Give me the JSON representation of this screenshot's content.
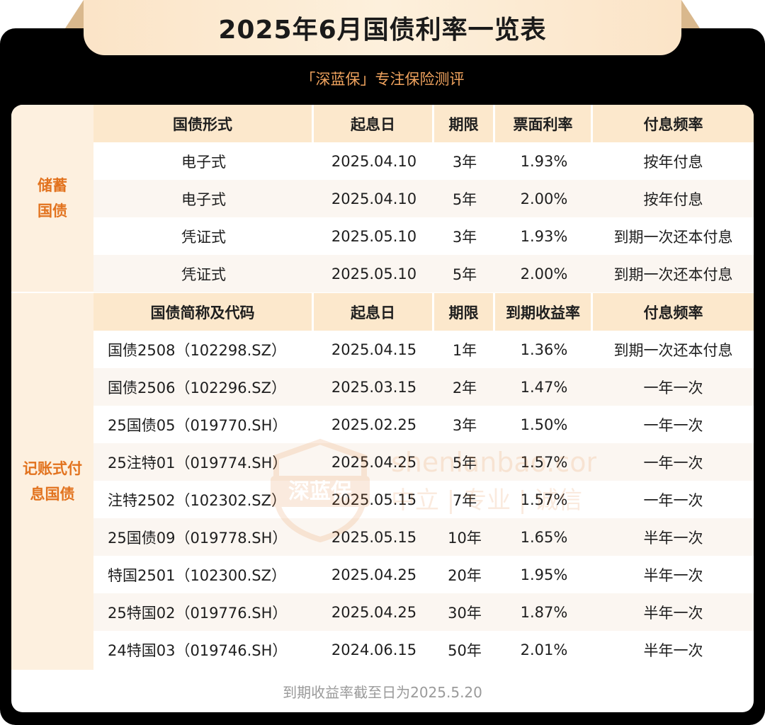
{
  "title": "2025年6月国债利率一览表",
  "subtitle": "「深蓝保」专注保险测评",
  "savings": {
    "category": [
      "储蓄",
      "国债"
    ],
    "headers": [
      "国债形式",
      "起息日",
      "期限",
      "票面利率",
      "付息频率"
    ],
    "rows": [
      [
        "电子式",
        "2025.04.10",
        "3年",
        "1.93%",
        "按年付息"
      ],
      [
        "电子式",
        "2025.04.10",
        "5年",
        "2.00%",
        "按年付息"
      ],
      [
        "凭证式",
        "2025.05.10",
        "3年",
        "1.93%",
        "到期一次还本付息"
      ],
      [
        "凭证式",
        "2025.05.10",
        "5年",
        "2.00%",
        "到期一次还本付息"
      ]
    ]
  },
  "bookkeeping": {
    "category": [
      "记账式付",
      "息国债"
    ],
    "headers": [
      "国债简称及代码",
      "起息日",
      "期限",
      "到期收益率",
      "付息频率"
    ],
    "rows": [
      [
        "国债2508（102298.SZ）",
        "2025.04.15",
        "1年",
        "1.36%",
        "到期一次还本付息"
      ],
      [
        "国债2506（102296.SZ）",
        "2025.03.15",
        "2年",
        "1.47%",
        "一年一次"
      ],
      [
        "25国债05（019770.SH）",
        "2025.02.25",
        "3年",
        "1.50%",
        "一年一次"
      ],
      [
        "25注特01（019774.SH）",
        "2025.04.25",
        "5年",
        "1.57%",
        "一年一次"
      ],
      [
        "注特2502（102302.SZ）",
        "2025.05.15",
        "7年",
        "1.57%",
        "一年一次"
      ],
      [
        "25国债09（019778.SH）",
        "2025.05.15",
        "10年",
        "1.65%",
        "半年一次"
      ],
      [
        "特国2501（102300.SZ）",
        "2025.04.25",
        "20年",
        "1.95%",
        "半年一次"
      ],
      [
        "25特国02（019776.SH）",
        "2025.04.25",
        "30年",
        "1.87%",
        "半年一次"
      ],
      [
        "24特国03（019746.SH）",
        "2024.06.15",
        "50年",
        "2.01%",
        "半年一次"
      ]
    ]
  },
  "footer": "到期收益率截至日为2025.5.20",
  "watermark": {
    "logo_text": "深蓝保",
    "url": "shenlanbao.com",
    "slogan": "中立 | 专业 | 诚信"
  },
  "colors": {
    "accent": "#e2731f",
    "header_bg": "#fce8cc",
    "category_bg": "#fdf0df",
    "zebra_bg": "#fbf6f1",
    "subtitle": "#f0a35e"
  }
}
